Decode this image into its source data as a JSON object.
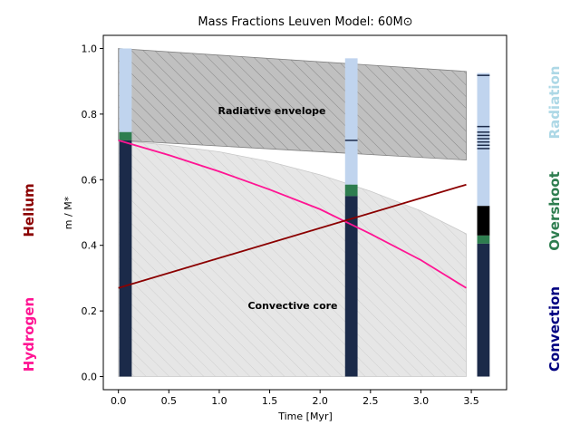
{
  "chart_data": {
    "type": "area",
    "title": "Mass Fractions Leuven Model: 60M⊙",
    "xlabel": "Time [Myr]",
    "ylabel": "m / M*",
    "xlim": [
      -0.15,
      3.85
    ],
    "ylim": [
      -0.04,
      1.04
    ],
    "x_ticks": [
      "0.0",
      "0.5",
      "1.0",
      "1.5",
      "2.0",
      "2.5",
      "3.0",
      "3.5"
    ],
    "y_ticks": [
      "0.0",
      "0.2",
      "0.4",
      "0.6",
      "0.8",
      "1.0"
    ],
    "grid": false,
    "annotations": {
      "radiative": "Radiative envelope",
      "convective": "Convective core"
    },
    "side_labels": {
      "left_top": "Helium",
      "left_bottom": "Hydrogen",
      "right_top": "Radiation",
      "right_mid": "Overshoot",
      "right_bottom": "Convection"
    },
    "colors": {
      "hydrogen": "#ff1493",
      "helium": "#8b0000",
      "radiation": "#c0d4ee",
      "overshoot": "#2e7d4f",
      "convection": "#1b2a49",
      "convection_text": "#000080",
      "radiation_text": "#add8e6"
    },
    "envelope_region": {
      "x": [
        0.0,
        3.45
      ],
      "upper": [
        1.0,
        0.93
      ],
      "lower": [
        0.72,
        0.66
      ]
    },
    "core_region": {
      "x": [
        0.0,
        0.5,
        1.0,
        1.5,
        2.0,
        2.5,
        3.0,
        3.45
      ],
      "upper": [
        0.72,
        0.705,
        0.685,
        0.655,
        0.615,
        0.565,
        0.505,
        0.435
      ]
    },
    "series": [
      {
        "name": "Hydrogen",
        "x": [
          0.0,
          0.5,
          1.0,
          1.5,
          2.0,
          2.5,
          3.0,
          3.45
        ],
        "y": [
          0.72,
          0.675,
          0.625,
          0.57,
          0.51,
          0.435,
          0.355,
          0.27
        ]
      },
      {
        "name": "Helium",
        "x": [
          0.0,
          3.45
        ],
        "y": [
          0.27,
          0.585
        ]
      }
    ],
    "structure_bars": [
      {
        "time": 0.07,
        "convection": [
          0.0,
          0.72
        ],
        "overshoot": [
          0.72,
          0.745
        ],
        "radiation": [
          0.745,
          1.0
        ]
      },
      {
        "time": 2.31,
        "convection": [
          0.0,
          0.55
        ],
        "overshoot": [
          0.55,
          0.585
        ],
        "radiation": [
          0.585,
          0.97
        ],
        "lines": [
          0.72
        ]
      },
      {
        "time": 3.62,
        "convection": [
          0.0,
          0.405
        ],
        "overshoot": [
          0.405,
          0.43
        ],
        "black": [
          0.43,
          0.52
        ],
        "radiation": [
          0.52,
          0.925
        ],
        "lines": [
          0.695,
          0.705,
          0.715,
          0.725,
          0.735,
          0.745,
          0.762,
          0.918
        ]
      }
    ]
  }
}
